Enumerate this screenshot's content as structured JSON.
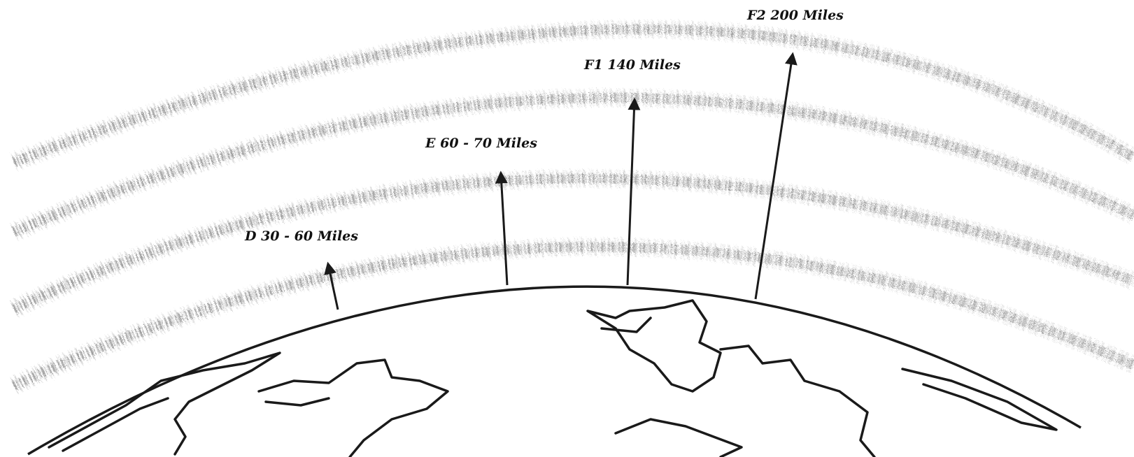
{
  "layers": [
    {
      "label": "D 30 - 60 Miles"
    },
    {
      "label": "E 60 - 70 Miles"
    },
    {
      "label": "F1 140 Miles"
    },
    {
      "label": "F2 200 Miles"
    }
  ]
}
